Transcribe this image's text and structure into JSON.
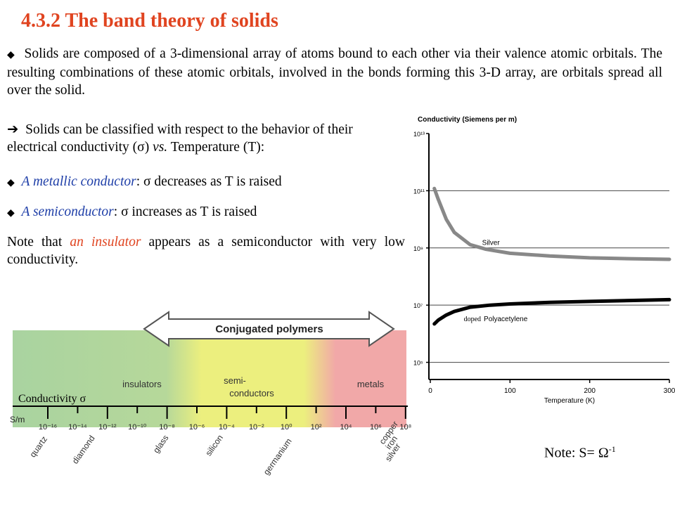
{
  "slide": {
    "title": "4.3.2 The band theory of solids",
    "bullet_glyph": "◆",
    "arrow_glyph": "➔",
    "p1": "Solids are composed of a 3-dimensional array of atoms bound to each other via their valence atomic orbitals. The resulting combinations of these atomic orbitals, involved in the bonds forming this 3-D array, are orbitals spread all over the solid.",
    "p2_a": "Solids can be classified with respect to the behavior of their electrical conductivity (",
    "p2_sigma": "σ",
    "p2_b": ") ",
    "p2_vs": "vs.",
    "p2_c": " Temperature (T):",
    "b1_term": "A metallic conductor",
    "b1_rest": ": σ decreases as T is raised",
    "b2_term": "A semiconductor",
    "b2_rest": ": σ increases as T is raised",
    "note_a": "Note that ",
    "note_term": "an insulator",
    "note_b": " appears as a semiconductor with very low conductivity.",
    "note2_a": "Note: S= Ω",
    "note2_sup": "-1"
  },
  "scale": {
    "banner": "Conjugated polymers",
    "regions": [
      "insulators",
      "semi-",
      "conductors",
      "metals"
    ],
    "axis_label": "Conductivity σ",
    "unit": "S/m",
    "ticks": [
      "10⁻¹⁶",
      "10⁻¹⁴",
      "10⁻¹²",
      "10⁻¹⁰",
      "10⁻⁸",
      "10⁻⁶",
      "10⁻⁴",
      "10⁻²",
      "10⁰",
      "10²",
      "10⁴",
      "10⁶",
      "10⁸"
    ],
    "materials": [
      "quartz",
      "diamond",
      "glass",
      "silicon",
      "germanium",
      "copper",
      "iron",
      "silver"
    ],
    "colors": {
      "insulator": "#a9d3a0",
      "semi": "#ecef7e",
      "metal": "#f1a8a8"
    }
  },
  "chart_data": {
    "type": "line",
    "title": "Conductivity (Siemens per m)",
    "xlabel": "Temperature (K)",
    "xlim": [
      0,
      300
    ],
    "ylim": [
      100000,
      10000000000000
    ],
    "log_y": true,
    "x_ticks": [
      "0",
      "100",
      "200",
      "300"
    ],
    "y_ticks": [
      "10¹³",
      "10¹¹",
      "10⁹",
      "10⁷",
      "10⁵"
    ],
    "grid": true,
    "series": [
      {
        "name": "Silver",
        "color": "#888888",
        "x": [
          5,
          10,
          20,
          30,
          50,
          70,
          100,
          150,
          200,
          250,
          300
        ],
        "y": [
          120000000000,
          50000000000,
          10000000000,
          3500000000,
          1300000000,
          900000000,
          650000000,
          520000000,
          450000000,
          420000000,
          400000000
        ]
      },
      {
        "name": "Polyacetylene",
        "color": "#000000",
        "x": [
          5,
          10,
          20,
          30,
          50,
          75,
          100,
          150,
          200,
          250,
          300
        ],
        "y": [
          2200000,
          3000000,
          4500000,
          6000000,
          8500000,
          10000000,
          11000000,
          12500000,
          13500000,
          14500000,
          15500000
        ]
      }
    ],
    "annotation_prefix": "doped"
  }
}
